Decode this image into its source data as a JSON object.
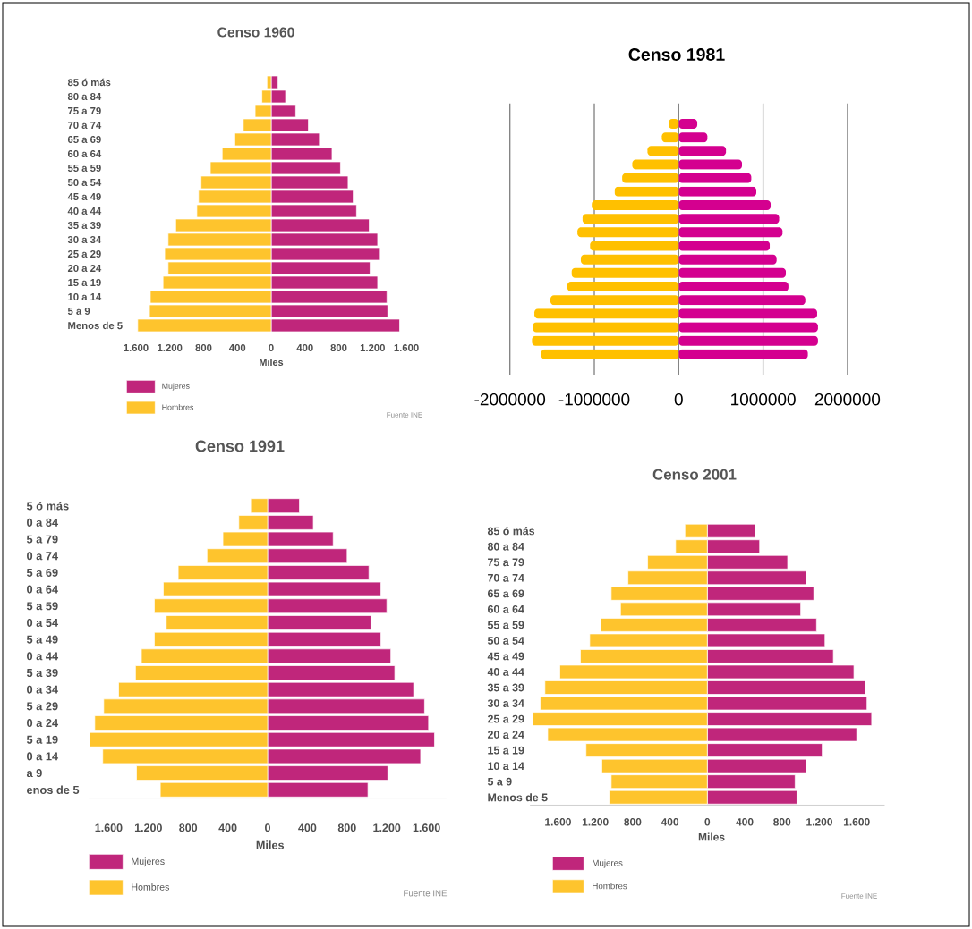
{
  "chart_data": [
    {
      "type": "bar",
      "orientation": "horizontal",
      "stacked": true,
      "title": "Censo 1960",
      "xlabel": "Miles",
      "categories": [
        "85 ó más",
        "80 a 84",
        "75 a 79",
        "70 a 74",
        "65 a 69",
        "60 a 64",
        "55 a 59",
        "50 a 54",
        "45 a 49",
        "40 a 44",
        "35 a 39",
        "30 a 34",
        "25 a 29",
        "20 a 24",
        "15 a 19",
        "10 a 14",
        "5 a 9",
        "Menos de 5"
      ],
      "series": [
        {
          "name": "Mujeres",
          "color": "#c0267b",
          "values": [
            80,
            170,
            290,
            440,
            570,
            720,
            820,
            910,
            970,
            1010,
            1160,
            1260,
            1290,
            1170,
            1260,
            1370,
            1380,
            1520
          ]
        },
        {
          "name": "Hombres",
          "color": "#fec42d",
          "values": [
            -50,
            -110,
            -190,
            -330,
            -430,
            -580,
            -720,
            -830,
            -860,
            -880,
            -1130,
            -1220,
            -1260,
            -1220,
            -1280,
            -1430,
            -1440,
            -1580
          ]
        }
      ],
      "xlim": [
        -1600,
        1600
      ],
      "xticks": [
        {
          "value": -1600,
          "label": "1.600"
        },
        {
          "value": -1200,
          "label": "1.200"
        },
        {
          "value": -800,
          "label": "800"
        },
        {
          "value": -400,
          "label": "400"
        },
        0,
        400,
        800,
        {
          "value": 1200,
          "label": "1.200"
        },
        {
          "value": 1600,
          "label": "1.600"
        }
      ],
      "legend": "bottom left",
      "annotations": [
        "Fuente INE"
      ]
    },
    {
      "type": "bar",
      "orientation": "horizontal",
      "stacked": true,
      "title": "Censo 1981",
      "categories": [
        null,
        null,
        null,
        null,
        null,
        null,
        null,
        null,
        null,
        null,
        null,
        null,
        null,
        null,
        null,
        null,
        null,
        null,
        null,
        null
      ],
      "series": [
        {
          "color": "#d4008f",
          "values": [
            null,
            220000,
            340000,
            560000,
            750000,
            860000,
            920000,
            1090000,
            1190000,
            1230000,
            1080000,
            1160000,
            1270000,
            1300000,
            1500000,
            1640000,
            1650000,
            1650000,
            1530000,
            null
          ]
        },
        {
          "color": "#ffc000",
          "values": [
            null,
            -120000,
            -200000,
            -370000,
            -550000,
            -670000,
            -760000,
            -1030000,
            -1140000,
            -1200000,
            -1050000,
            -1160000,
            -1270000,
            -1320000,
            -1520000,
            -1710000,
            -1730000,
            -1740000,
            -1630000,
            null
          ]
        }
      ],
      "xlim": [
        -2000000,
        2000000
      ],
      "xticks": [
        -2000000,
        -1000000,
        0,
        1000000,
        2000000
      ],
      "grid": "x"
    },
    {
      "type": "bar",
      "orientation": "horizontal",
      "stacked": true,
      "title": "Censo 1991",
      "xlabel": "Miles",
      "categories": [
        "5 ó más",
        "0 a 84",
        "5 a 79",
        "0 a 74",
        "5 a 69",
        "0 a 64",
        "5 a 59",
        "0 a 54",
        "5 a 49",
        "0 a 44",
        "5 a 39",
        "0 a 34",
        "5 a 29",
        "0 a 24",
        "5 a 19",
        "0 a 14",
        "a 9",
        "enos de 5"
      ],
      "series": [
        {
          "name": "Mujeres",
          "color": "#c0267b",
          "values": [
            320,
            460,
            660,
            800,
            1020,
            1140,
            1200,
            1040,
            1140,
            1240,
            1280,
            1470,
            1580,
            1620,
            1680,
            1540,
            1210,
            1010
          ]
        },
        {
          "name": "Hombres",
          "color": "#fec42d",
          "values": [
            -170,
            -290,
            -450,
            -610,
            -900,
            -1050,
            -1140,
            -1020,
            -1140,
            -1270,
            -1330,
            -1500,
            -1650,
            -1740,
            -1790,
            -1660,
            -1320,
            -1080
          ]
        }
      ],
      "xlim": [
        -1800,
        1800
      ],
      "xticks": [
        {
          "value": -1600,
          "label": "1.600"
        },
        {
          "value": -1200,
          "label": "1.200"
        },
        {
          "value": -800,
          "label": "800"
        },
        {
          "value": -400,
          "label": "400"
        },
        0,
        400,
        800,
        {
          "value": 1200,
          "label": "1.200"
        },
        {
          "value": 1600,
          "label": "1.600"
        }
      ],
      "legend": "bottom left",
      "annotations": [
        "Fuente INE"
      ]
    },
    {
      "type": "bar",
      "orientation": "horizontal",
      "stacked": true,
      "title": "Censo 2001",
      "xlabel": "Miles",
      "categories": [
        "85 ó más",
        "80 a 84",
        "75 a 79",
        "70 a 74",
        "65 a 69",
        "60 a 64",
        "55 a 59",
        "50 a 54",
        "45 a 49",
        "40 a 44",
        "35 a 39",
        "30 a 34",
        "25 a 29",
        "20 a 24",
        "15 a 19",
        "10 a 14",
        "5 a 9",
        "Menos de 5"
      ],
      "series": [
        {
          "name": "Mujeres",
          "color": "#c0267b",
          "values": [
            510,
            560,
            860,
            1060,
            1140,
            1000,
            1170,
            1260,
            1350,
            1570,
            1690,
            1710,
            1760,
            1600,
            1230,
            1060,
            940,
            960
          ]
        },
        {
          "name": "Hombres",
          "color": "#fec42d",
          "values": [
            -240,
            -340,
            -640,
            -850,
            -1030,
            -930,
            -1140,
            -1260,
            -1360,
            -1580,
            -1740,
            -1790,
            -1870,
            -1710,
            -1300,
            -1130,
            -1030,
            -1050
          ]
        }
      ],
      "xlim": [
        -1900,
        1900
      ],
      "xticks": [
        {
          "value": -1600,
          "label": "1.600"
        },
        {
          "value": -1200,
          "label": "1.200"
        },
        {
          "value": -800,
          "label": "800"
        },
        {
          "value": -400,
          "label": "400"
        },
        0,
        400,
        800,
        {
          "value": 1200,
          "label": "1.200"
        },
        {
          "value": 1600,
          "label": "1.600"
        }
      ],
      "legend": "bottom left",
      "annotations": [
        "Fuente INE"
      ]
    }
  ]
}
